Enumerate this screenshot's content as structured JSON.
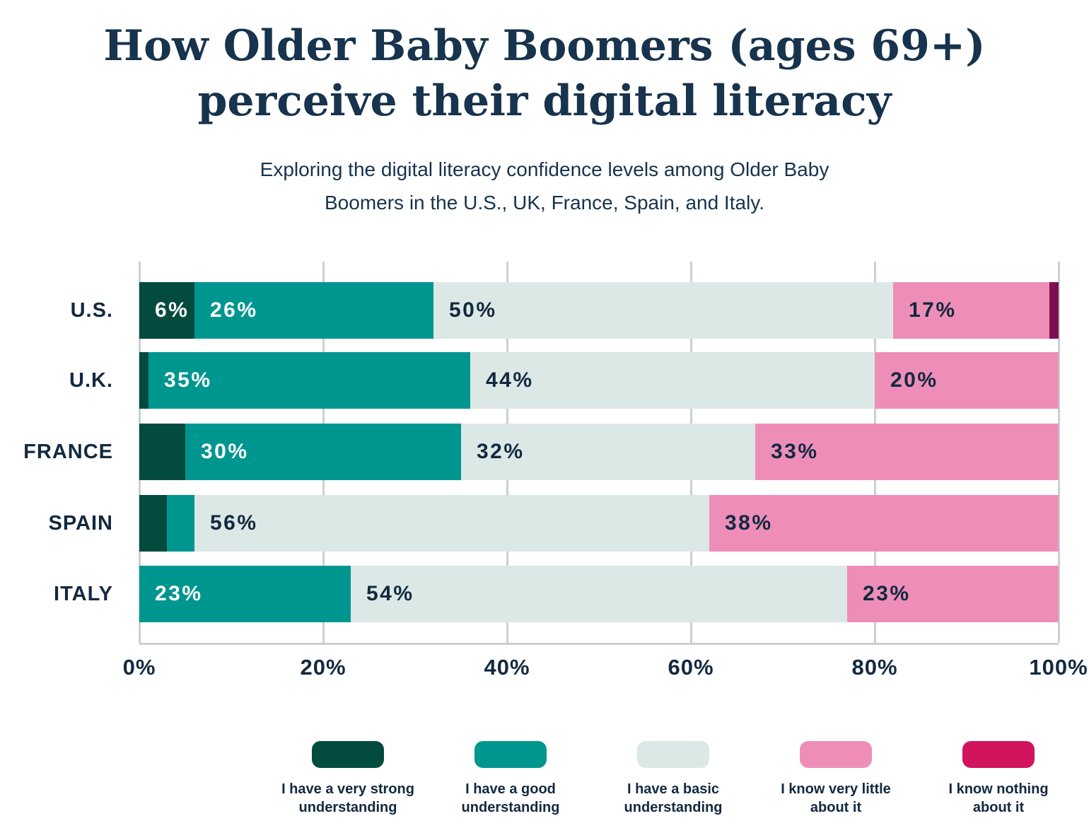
{
  "title": "How Older Baby Boomers (ages 69+)\nperceive their digital literacy",
  "subtitle": "Exploring the digital literacy confidence levels among Older Baby\nBoomers in the U.S., UK, France, Spain, and Italy.",
  "colors": {
    "title_text": "#17334d",
    "axis_text": "#122940",
    "gridline": "#c9d1cf",
    "background": "#ffffff"
  },
  "chart_data": {
    "type": "bar",
    "orientation": "horizontal",
    "stacked": true,
    "grid": "vertical",
    "legend_position": "bottom",
    "categories": [
      "U.S.",
      "U.K.",
      "FRANCE",
      "SPAIN",
      "ITALY"
    ],
    "series": [
      {
        "name": "I have a very strong understanding",
        "color": "#034b3f",
        "legend_color": "#034b3f",
        "label_color": "#ffffff",
        "values": [
          6,
          1,
          5,
          3,
          0
        ]
      },
      {
        "name": "I have a good understanding",
        "color": "#009690",
        "legend_color": "#009690",
        "label_color": "#ffffff",
        "values": [
          26,
          35,
          30,
          3,
          23
        ]
      },
      {
        "name": "I have a basic understanding",
        "color": "#dce8e5",
        "legend_color": "#dce8e5",
        "label_color": "#122940",
        "values": [
          50,
          44,
          32,
          56,
          54
        ]
      },
      {
        "name": "I know very little about it",
        "color": "#ee8eb8",
        "legend_color": "#ee8eb8",
        "label_color": "#122940",
        "values": [
          17,
          20,
          33,
          38,
          23
        ]
      },
      {
        "name": "I know nothing about it",
        "color": "#7d1053",
        "legend_color": "#d2145f",
        "label_color": "#ffffff",
        "values": [
          1,
          0,
          0,
          0,
          0
        ]
      }
    ],
    "value_suffix": "%",
    "label_min_value": 6,
    "x_axis": {
      "min": 0,
      "max": 100,
      "ticks": [
        "0%",
        "20%",
        "40%",
        "60%",
        "80%",
        "100%"
      ]
    }
  }
}
